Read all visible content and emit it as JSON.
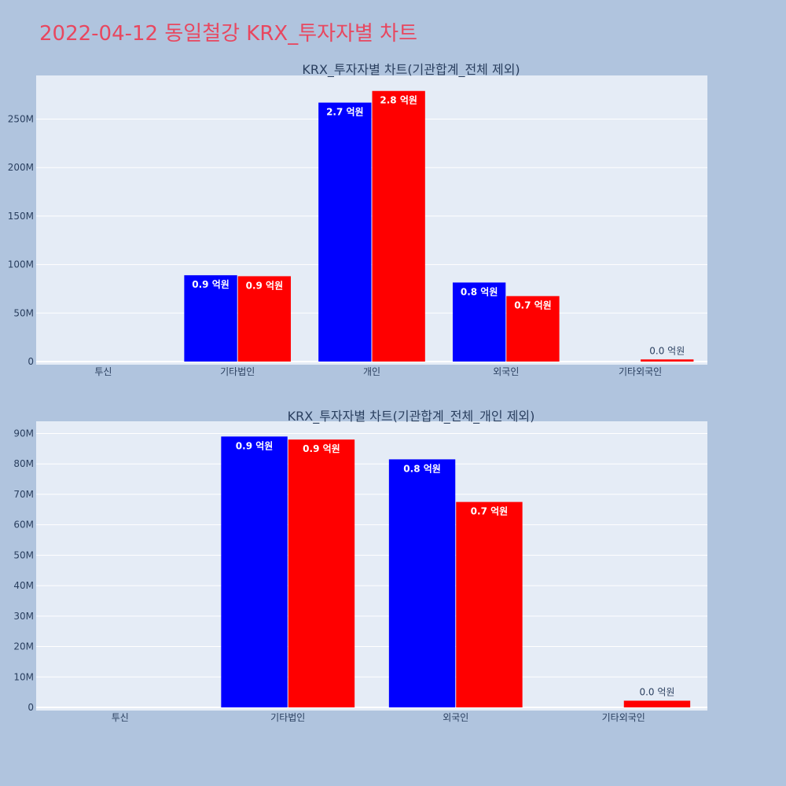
{
  "page": {
    "title": "2022-04-12 동일철강 KRX_투자자별 차트"
  },
  "colors": {
    "series_a": "#0000ff",
    "series_b": "#ff0000",
    "plot_bg": "#e5ecf6",
    "page_bg": "#b0c4de"
  },
  "chart_data": [
    {
      "type": "bar",
      "title": "KRX_투자자별 차트(기관합계_전체 제외)",
      "categories": [
        "투신",
        "기타법인",
        "개인",
        "외국인",
        "기타외국인"
      ],
      "series": [
        {
          "values": [
            0,
            89000000,
            267000000,
            81500000,
            0
          ],
          "labels": [
            "",
            "0.9 억원",
            "2.7 억원",
            "0.8 억원",
            ""
          ]
        },
        {
          "values": [
            0,
            88000000,
            279000000,
            67500000,
            2200000
          ],
          "labels": [
            "",
            "0.9 억원",
            "2.8 억원",
            "0.7 억원",
            "0.0 억원"
          ]
        }
      ],
      "ylim": [
        0,
        295000000
      ],
      "yticks": [
        0,
        50000000,
        100000000,
        150000000,
        200000000,
        250000000
      ],
      "ytick_labels": [
        "0",
        "50M",
        "100M",
        "150M",
        "200M",
        "250M"
      ],
      "grid": true
    },
    {
      "type": "bar",
      "title": "KRX_투자자별 차트(기관합계_전체_개인 제외)",
      "categories": [
        "투신",
        "기타법인",
        "외국인",
        "기타외국인"
      ],
      "series": [
        {
          "values": [
            0,
            89000000,
            81500000,
            0
          ],
          "labels": [
            "",
            "0.9 억원",
            "0.8 억원",
            ""
          ]
        },
        {
          "values": [
            0,
            88000000,
            67500000,
            2200000
          ],
          "labels": [
            "",
            "0.9 억원",
            "0.7 억원",
            "0.0 억원"
          ]
        }
      ],
      "ylim": [
        0,
        94000000
      ],
      "yticks": [
        0,
        10000000,
        20000000,
        30000000,
        40000000,
        50000000,
        60000000,
        70000000,
        80000000,
        90000000
      ],
      "ytick_labels": [
        "0",
        "10M",
        "20M",
        "30M",
        "40M",
        "50M",
        "60M",
        "70M",
        "80M",
        "90M"
      ],
      "grid": true
    }
  ]
}
